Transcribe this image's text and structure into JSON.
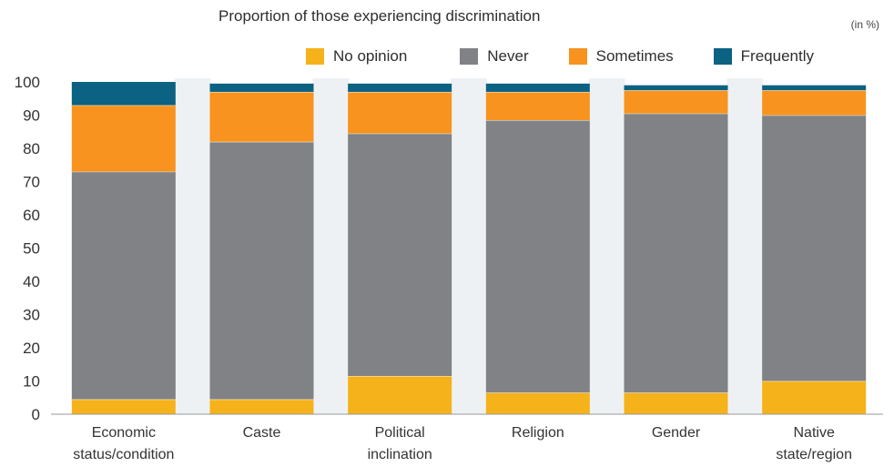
{
  "chart_data": {
    "type": "bar",
    "stacked": true,
    "title": "Proportion of those experiencing discrimination",
    "unit": "(in %)",
    "categories": [
      [
        "Economic",
        "status/condition"
      ],
      [
        "Caste"
      ],
      [
        "Political",
        "inclination"
      ],
      [
        "Religion"
      ],
      [
        "Gender"
      ],
      [
        "Native",
        "state/region"
      ]
    ],
    "series": [
      {
        "name": "No opinion",
        "color": "#F5B21A",
        "values": [
          4.5,
          4.5,
          11.5,
          6.5,
          6.5,
          10
        ]
      },
      {
        "name": "Never",
        "color": "#808285",
        "values": [
          68.5,
          77.5,
          73,
          82,
          84,
          80
        ]
      },
      {
        "name": "Sometimes",
        "color": "#F7931E",
        "values": [
          20,
          15,
          12.5,
          8.5,
          7,
          7.5
        ]
      },
      {
        "name": "Frequently",
        "color": "#0B6283",
        "values": [
          7,
          2.5,
          2.5,
          2.5,
          1.5,
          1.5
        ]
      }
    ],
    "ylim": [
      0,
      100
    ],
    "yticks": [
      0,
      10,
      20,
      30,
      40,
      50,
      60,
      70,
      80,
      90,
      100
    ],
    "legend_position": "top",
    "grid": false
  }
}
